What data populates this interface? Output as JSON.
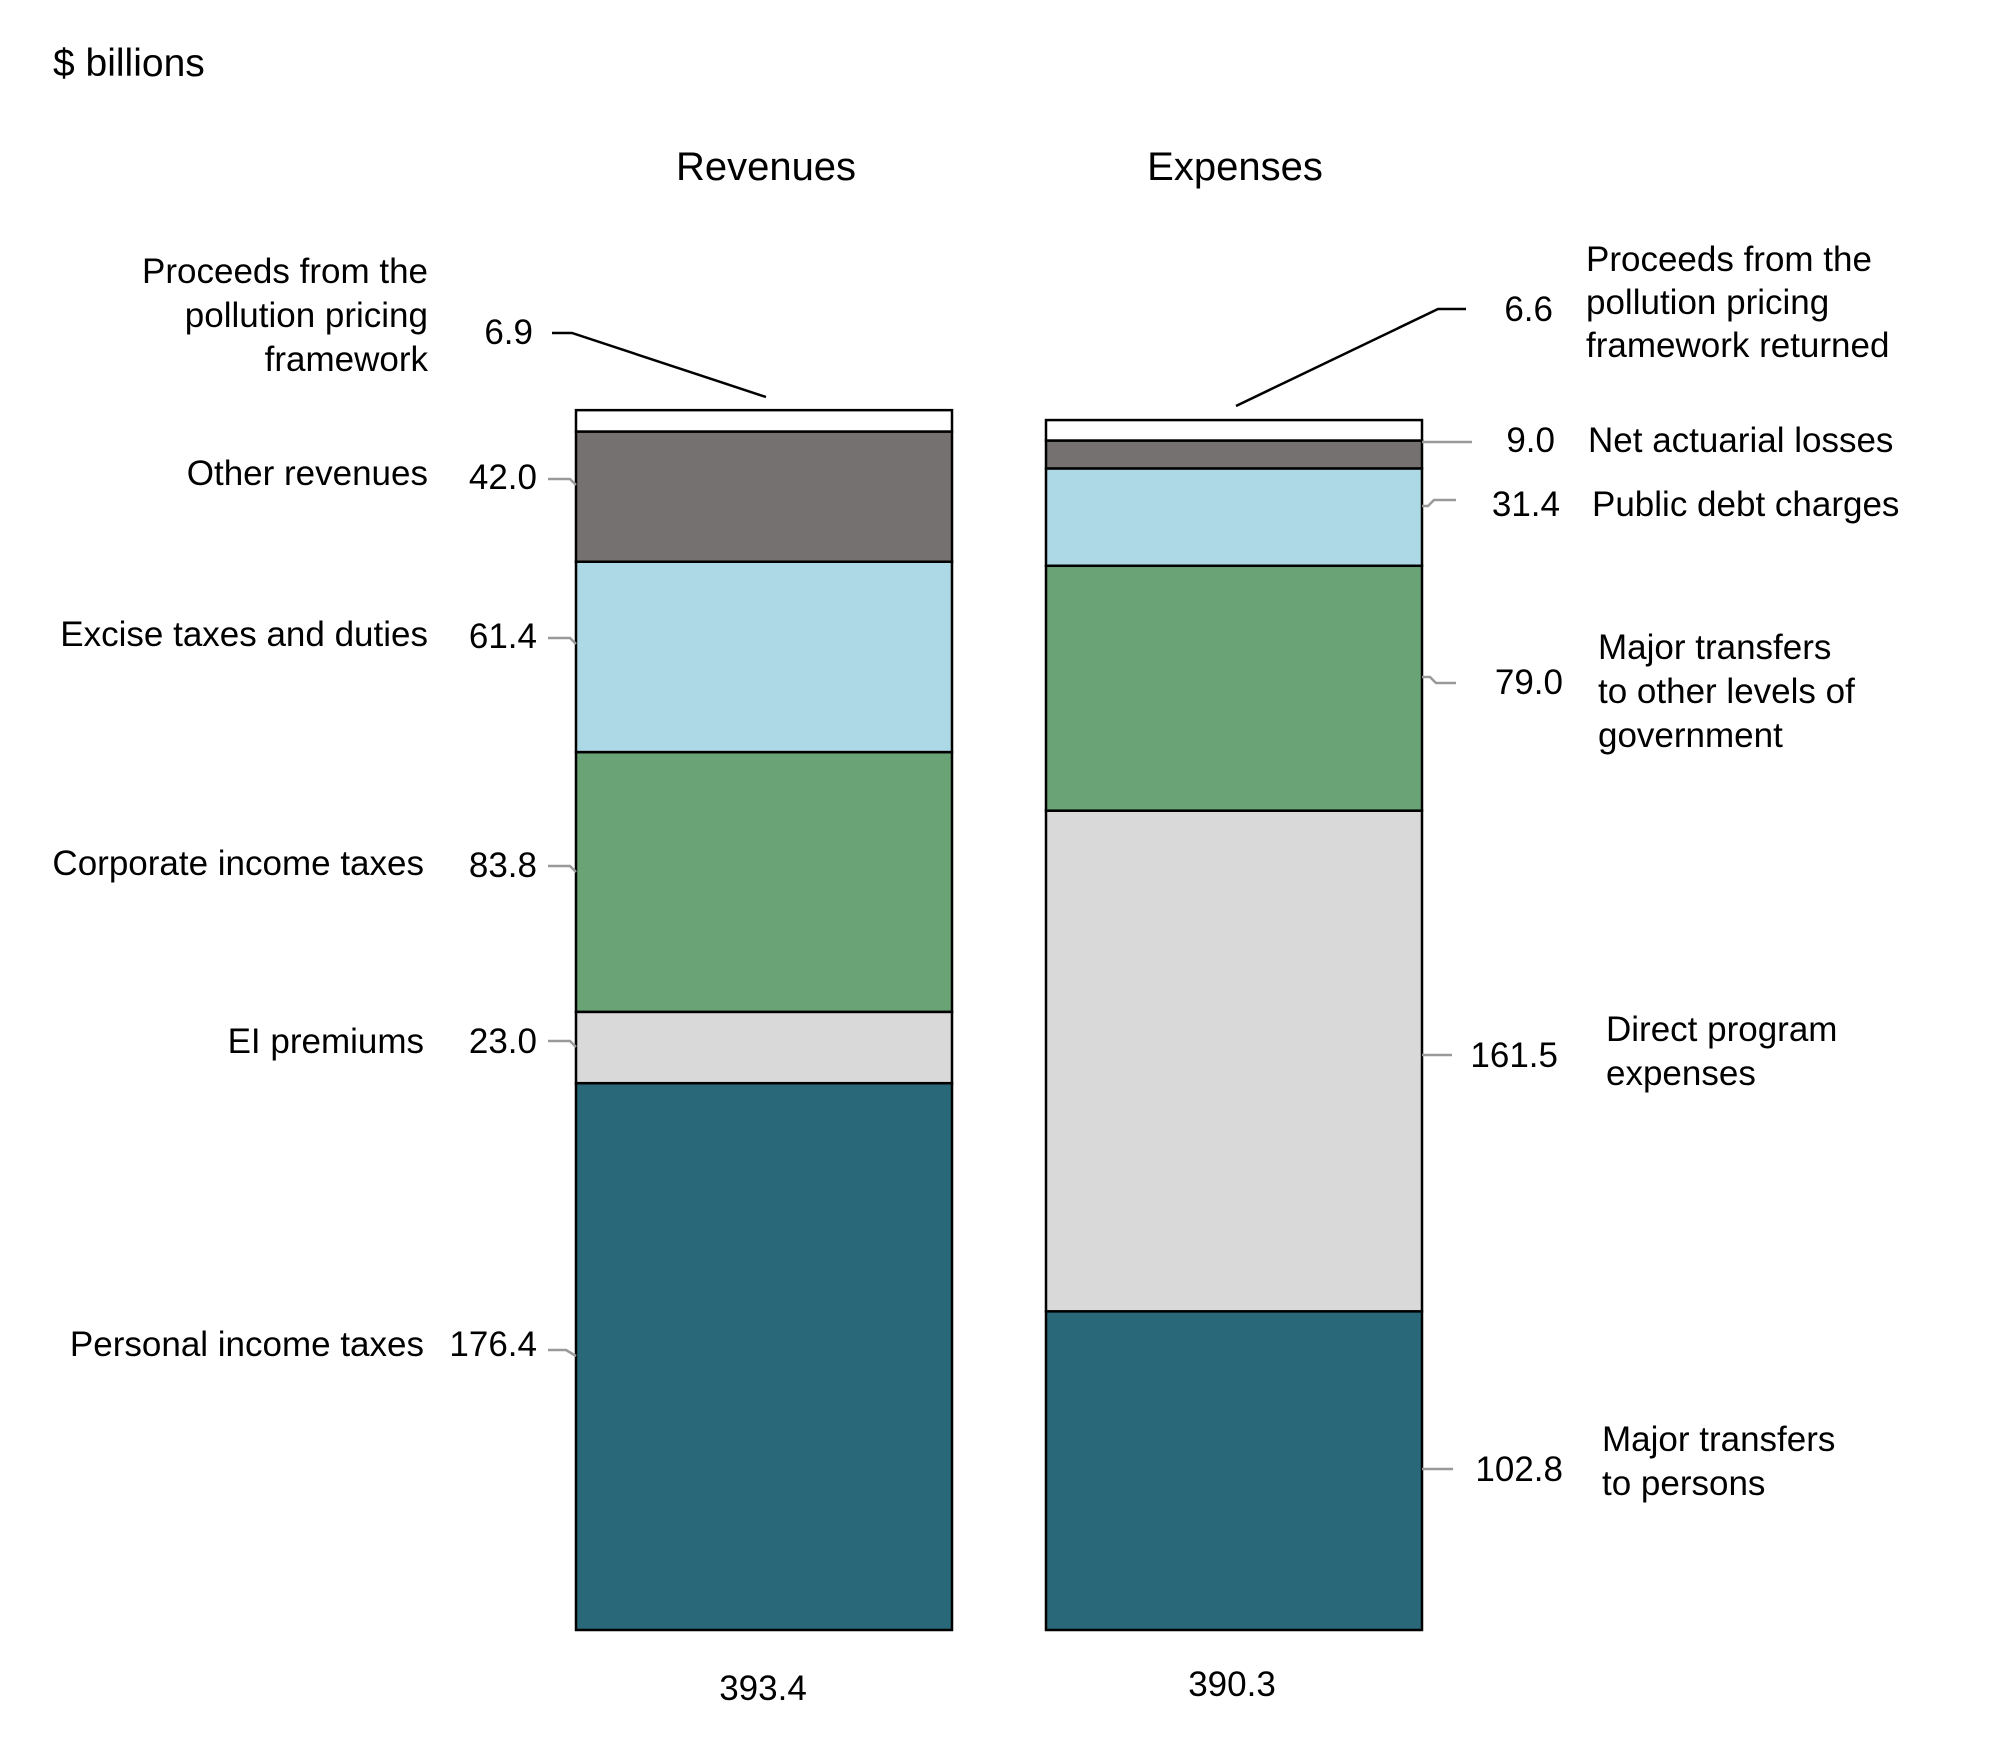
{
  "chart_data": {
    "type": "bar",
    "stacked": true,
    "unit_label": "$ billions",
    "bars": [
      {
        "title": "Revenues",
        "total": "393.4",
        "segments": [
          {
            "label": "Personal income taxes",
            "value": 176.4,
            "display": "176.4",
            "color": "#296878"
          },
          {
            "label": "EI premiums",
            "value": 23.0,
            "display": "23.0",
            "color": "#d9d9d9"
          },
          {
            "label": "Corporate income taxes",
            "value": 83.8,
            "display": "83.8",
            "color": "#6aa476"
          },
          {
            "label": "Excise taxes and duties",
            "value": 61.4,
            "display": "61.4",
            "color": "#add8e6"
          },
          {
            "label": "Other revenues",
            "value": 42.0,
            "display": "42.0",
            "color": "#767171"
          },
          {
            "label": "Proceeds from the pollution pricing framework",
            "value": 6.9,
            "display": "6.9",
            "color": "#ffffff",
            "label_lines": [
              "Proceeds from the",
              "pollution pricing",
              "framework"
            ]
          }
        ]
      },
      {
        "title": "Expenses",
        "total": "390.3",
        "segments": [
          {
            "label": "Major transfers to persons",
            "value": 102.8,
            "display": "102.8",
            "color": "#296878",
            "label_lines": [
              "Major transfers",
              "to persons"
            ]
          },
          {
            "label": "Direct program expenses",
            "value": 161.5,
            "display": "161.5",
            "color": "#d9d9d9",
            "label_lines": [
              "Direct program",
              "expenses"
            ]
          },
          {
            "label": "Major transfers to other levels of government",
            "value": 79.0,
            "display": "79.0",
            "color": "#6aa476",
            "label_lines": [
              "Major transfers",
              "to other levels of",
              "government"
            ]
          },
          {
            "label": "Public debt charges",
            "value": 31.4,
            "display": "31.4",
            "color": "#add8e6"
          },
          {
            "label": "Net actuarial losses",
            "value": 9.0,
            "display": "9.0",
            "color": "#767171"
          },
          {
            "label": "Proceeds from the pollution pricing framework returned",
            "value": 6.6,
            "display": "6.6",
            "color": "#ffffff",
            "label_lines": [
              "Proceeds from the",
              "pollution pricing",
              "framework returned"
            ]
          }
        ]
      }
    ]
  }
}
